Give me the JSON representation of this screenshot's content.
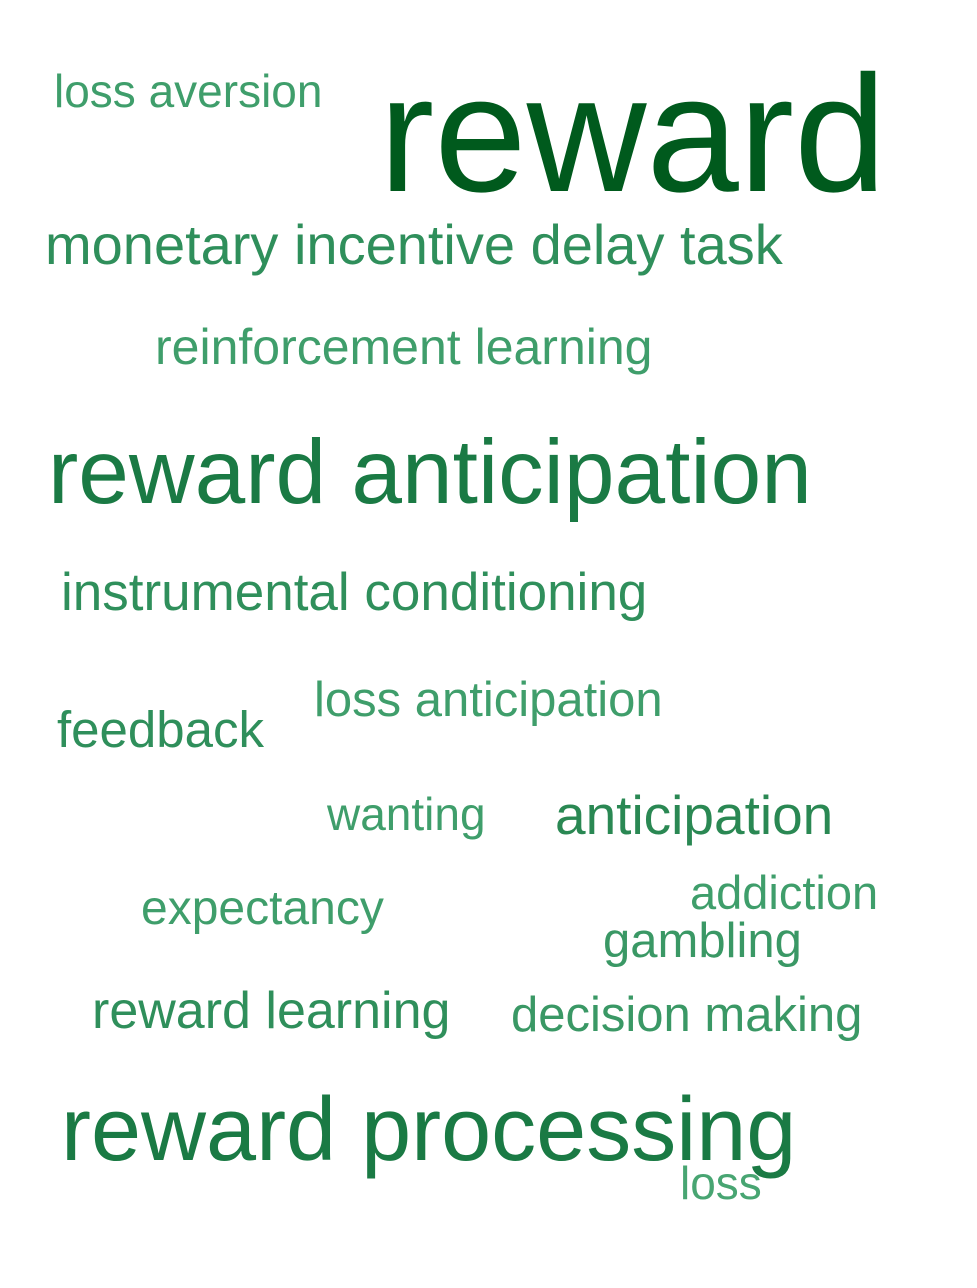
{
  "words": {
    "reward": {
      "text": "reward",
      "color": "#005a1d"
    },
    "loss_aversion": {
      "text": "loss aversion",
      "color": "#3f9e6b"
    },
    "monetary": {
      "text": "monetary incentive delay task",
      "color": "#2f8f5b"
    },
    "reinforcement": {
      "text": "reinforcement learning",
      "color": "#3f9e6b"
    },
    "reward_anticipation": {
      "text": "reward anticipation",
      "color": "#1a7a44"
    },
    "instrumental": {
      "text": "instrumental conditioning",
      "color": "#2f8f5b"
    },
    "loss_anticipation": {
      "text": "loss anticipation",
      "color": "#3f9e6b"
    },
    "feedback": {
      "text": "feedback",
      "color": "#2f8f5b"
    },
    "wanting": {
      "text": "wanting",
      "color": "#3f9e6b"
    },
    "anticipation": {
      "text": "anticipation",
      "color": "#2a8853"
    },
    "addiction": {
      "text": "addiction",
      "color": "#3f9e6b"
    },
    "expectancy": {
      "text": "expectancy",
      "color": "#3f9e6b"
    },
    "gambling": {
      "text": "gambling",
      "color": "#3a9865"
    },
    "reward_learning": {
      "text": "reward learning",
      "color": "#2f8f5b"
    },
    "decision_making": {
      "text": "decision making",
      "color": "#3a9865"
    },
    "reward_processing": {
      "text": "reward processing",
      "color": "#1a7a44"
    },
    "loss": {
      "text": "loss",
      "color": "#48a572"
    }
  }
}
